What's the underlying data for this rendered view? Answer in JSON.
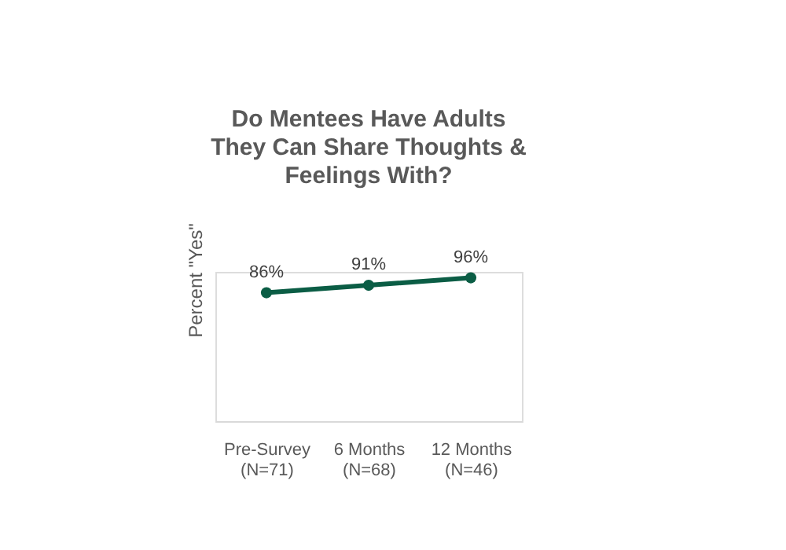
{
  "chart_data": {
    "type": "line",
    "title": "Do Mentees Have Adults They Can Share Thoughts & Feelings With?",
    "ylabel": "Percent \"Yes\"",
    "categories": [
      "Pre-Survey (N=71)",
      "6 Months (N=68)",
      "12 Months (N=46)"
    ],
    "series": [
      {
        "color": "#0b5d45",
        "values": [
          86,
          91,
          96
        ],
        "value_labels": [
          "86%",
          "91%",
          "96%"
        ]
      }
    ],
    "tick_labels": "x",
    "marker": "circle",
    "line_style": "solid",
    "grid": false,
    "legend": false
  }
}
